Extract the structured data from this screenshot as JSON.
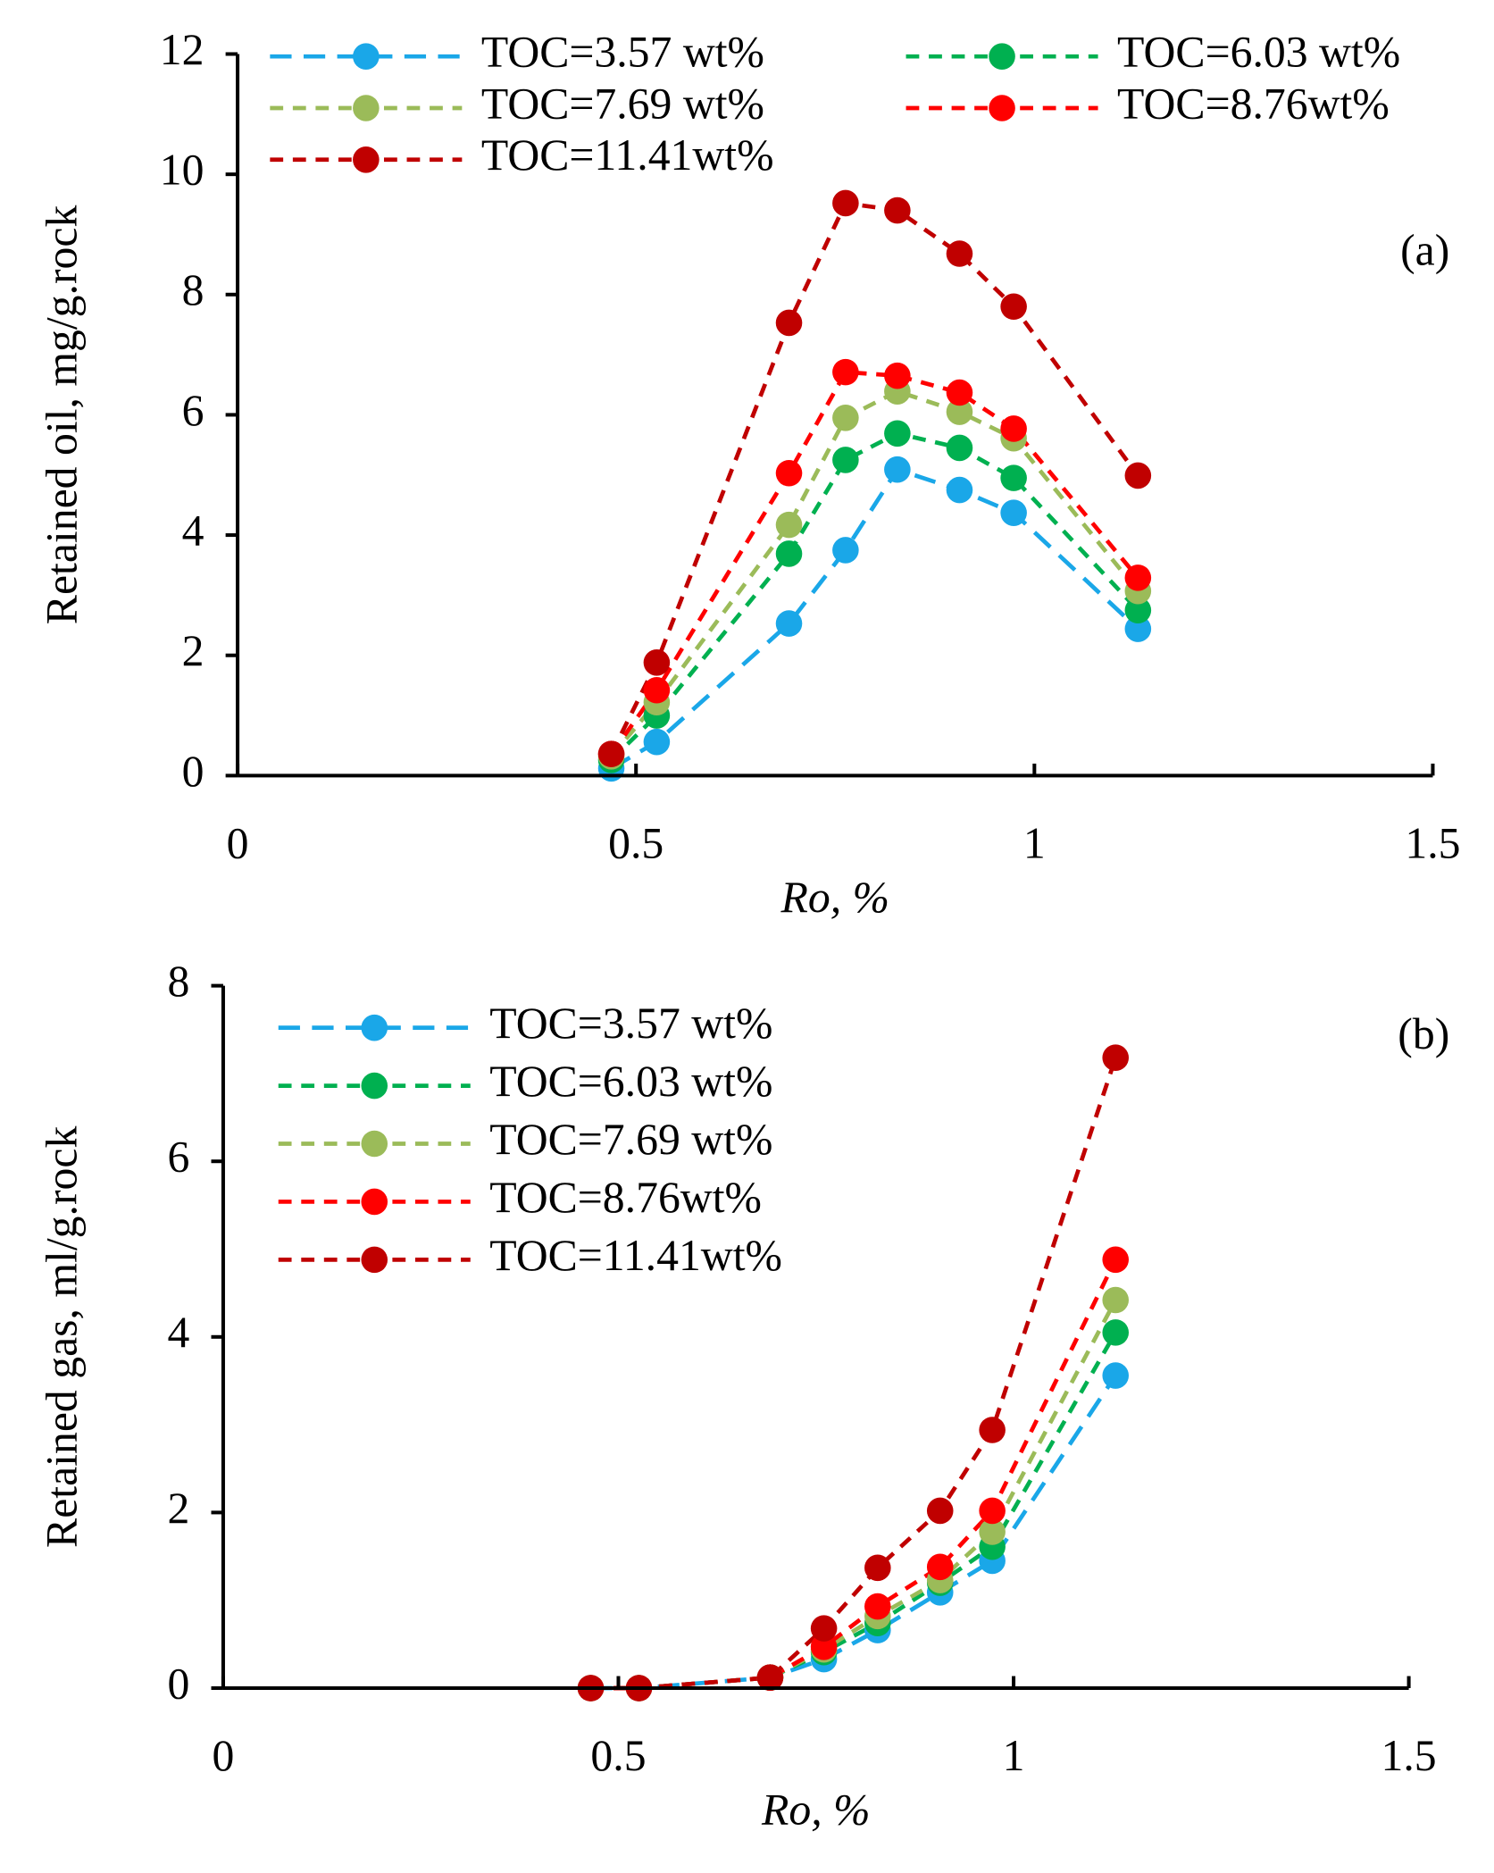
{
  "chart_data": [
    {
      "type": "line",
      "annotation": "(a)",
      "xlabel": "Ro, %",
      "ylabel": "Retained oil, mg/g.rock",
      "x": [
        0.469,
        0.526,
        0.692,
        0.763,
        0.828,
        0.906,
        0.974,
        1.13
      ],
      "xlim": [
        0,
        1.5
      ],
      "xticks": [
        0,
        0.5,
        1,
        1.5
      ],
      "ylim": [
        0,
        12
      ],
      "yticks": [
        0,
        2,
        4,
        6,
        8,
        10,
        12
      ],
      "legend": "upper left",
      "legend_columns": 2,
      "series": [
        {
          "name": "TOC=3.57 wt%",
          "color": "#1aa7e8",
          "values": [
            0.12,
            0.56,
            2.53,
            3.75,
            5.09,
            4.75,
            4.37,
            2.44
          ]
        },
        {
          "name": "TOC=6.03 wt%",
          "color": "#00b050",
          "values": [
            0.26,
            1.0,
            3.69,
            5.25,
            5.69,
            5.45,
            4.95,
            2.75
          ]
        },
        {
          "name": "TOC=7.69 wt%",
          "color": "#9bbb59",
          "values": [
            0.32,
            1.22,
            4.17,
            5.95,
            6.39,
            6.05,
            5.61,
            3.07
          ]
        },
        {
          "name": "TOC=8.76wt%",
          "color": "#ff0000",
          "values": [
            0.36,
            1.42,
            5.03,
            6.71,
            6.65,
            6.37,
            5.77,
            3.29
          ]
        },
        {
          "name": "TOC=11.41wt%",
          "color": "#c00000",
          "values": [
            0.36,
            1.88,
            7.53,
            9.52,
            9.4,
            8.68,
            7.8,
            4.99
          ]
        }
      ]
    },
    {
      "type": "line",
      "annotation": "(b)",
      "xlabel": "Ro, %",
      "ylabel": "Retained gas, ml/g.rock",
      "x": [
        0.465,
        0.526,
        0.692,
        0.76,
        0.828,
        0.907,
        0.973,
        1.129
      ],
      "xlim": [
        0,
        1.5
      ],
      "xticks": [
        0,
        0.5,
        1,
        1.5
      ],
      "ylim": [
        0,
        8
      ],
      "yticks": [
        0,
        2,
        4,
        6,
        8
      ],
      "legend": "upper left",
      "legend_columns": 1,
      "series": [
        {
          "name": "TOC=3.57 wt%",
          "color": "#1aa7e8",
          "values": [
            0,
            0,
            0.12,
            0.33,
            0.66,
            1.09,
            1.45,
            3.56
          ]
        },
        {
          "name": "TOC=6.03 wt%",
          "color": "#00b050",
          "values": [
            0,
            0,
            0.12,
            0.41,
            0.74,
            1.2,
            1.61,
            4.05
          ]
        },
        {
          "name": "TOC=7.69 wt%",
          "color": "#9bbb59",
          "values": [
            0,
            0,
            0.12,
            0.44,
            0.82,
            1.23,
            1.78,
            4.42
          ]
        },
        {
          "name": "TOC=8.76wt%",
          "color": "#ff0000",
          "values": [
            0,
            0,
            0.12,
            0.47,
            0.93,
            1.38,
            2.02,
            4.88
          ]
        },
        {
          "name": "TOC=11.41wt%",
          "color": "#c00000",
          "values": [
            0,
            0,
            0.12,
            0.68,
            1.37,
            2.02,
            2.94,
            7.18
          ]
        }
      ]
    }
  ]
}
